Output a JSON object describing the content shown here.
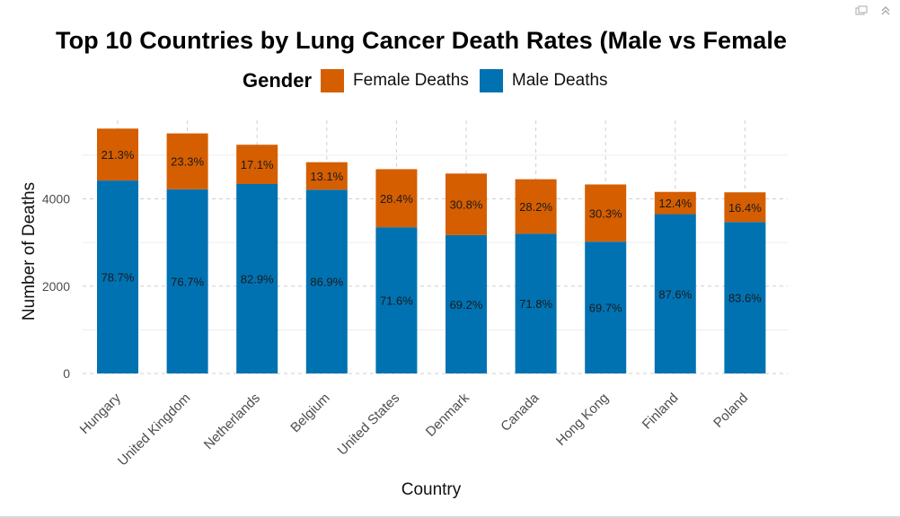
{
  "window": {
    "icons": [
      "popout-icon",
      "collapse-icon"
    ]
  },
  "chart_data": {
    "type": "bar",
    "stacked": true,
    "title": "Top 10 Countries by Lung Cancer Death Rates (Male vs Female",
    "xlabel": "Country",
    "ylabel": "Number of Deaths",
    "legend_title": "Gender",
    "legend_placement": "top",
    "categories": [
      "Hungary",
      "United Kingdom",
      "Netherlands",
      "Belgium",
      "United States",
      "Denmark",
      "Canada",
      "Hong Kong",
      "Finland",
      "Poland"
    ],
    "series": [
      {
        "name": "Female Deaths",
        "color": "#D55E00",
        "values": [
          1190,
          1280,
          900,
          630,
          1330,
          1410,
          1250,
          1310,
          510,
          680
        ],
        "labels": [
          "21.3%",
          "23.3%",
          "17.1%",
          "13.1%",
          "28.4%",
          "30.8%",
          "28.2%",
          "30.3%",
          "12.4%",
          "16.4%"
        ]
      },
      {
        "name": "Male Deaths",
        "color": "#0072B2",
        "values": [
          4420,
          4220,
          4340,
          4210,
          3350,
          3170,
          3200,
          3020,
          3650,
          3470
        ],
        "labels": [
          "78.7%",
          "76.7%",
          "82.9%",
          "86.9%",
          "71.6%",
          "69.2%",
          "71.8%",
          "69.7%",
          "87.6%",
          "83.6%"
        ]
      }
    ],
    "yticks": [
      "0",
      "2000",
      "4000"
    ],
    "ylim": [
      0,
      5800
    ],
    "grid": true
  }
}
